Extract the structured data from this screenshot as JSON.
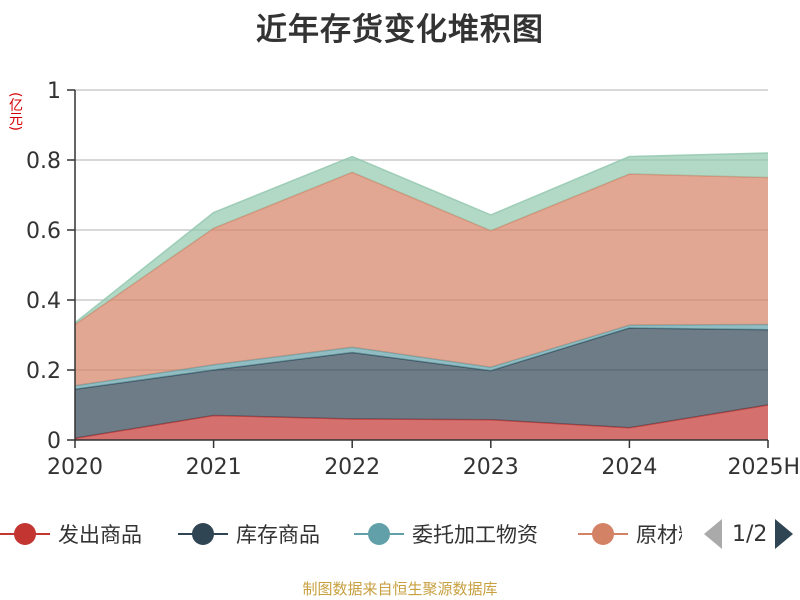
{
  "chart_data": {
    "type": "area",
    "stacked": true,
    "title": "近年存货变化堆积图",
    "unit": "(亿元)",
    "x": [
      "2020",
      "2021",
      "2022",
      "2023",
      "2024",
      "2025H"
    ],
    "ylim": [
      0,
      1
    ],
    "yticks": [
      "0",
      "0.2",
      "0.4",
      "0.6",
      "0.8",
      "1"
    ],
    "grid": true,
    "series": [
      {
        "name": "发出商品",
        "color": "#c23531",
        "values": [
          0.005,
          0.07,
          0.06,
          0.058,
          0.035,
          0.1
        ]
      },
      {
        "name": "库存商品",
        "color": "#2f4554",
        "values": [
          0.14,
          0.13,
          0.19,
          0.14,
          0.285,
          0.215
        ]
      },
      {
        "name": "委托加工物资",
        "color": "#61a0a8",
        "values": [
          0.01,
          0.015,
          0.015,
          0.01,
          0.008,
          0.015
        ]
      },
      {
        "name": "原材料",
        "color": "#d48265",
        "values": [
          0.175,
          0.39,
          0.5,
          0.39,
          0.432,
          0.42
        ]
      },
      {
        "name": "",
        "color": "#91c7ae",
        "values": [
          0.005,
          0.045,
          0.045,
          0.045,
          0.05,
          0.07
        ]
      }
    ],
    "legend_position": "bottom"
  },
  "legend": {
    "items": [
      "发出商品",
      "库存商品",
      "委托加工物资",
      "原材料"
    ],
    "page": "1/2"
  },
  "source": "制图数据来自恒生聚源数据库"
}
